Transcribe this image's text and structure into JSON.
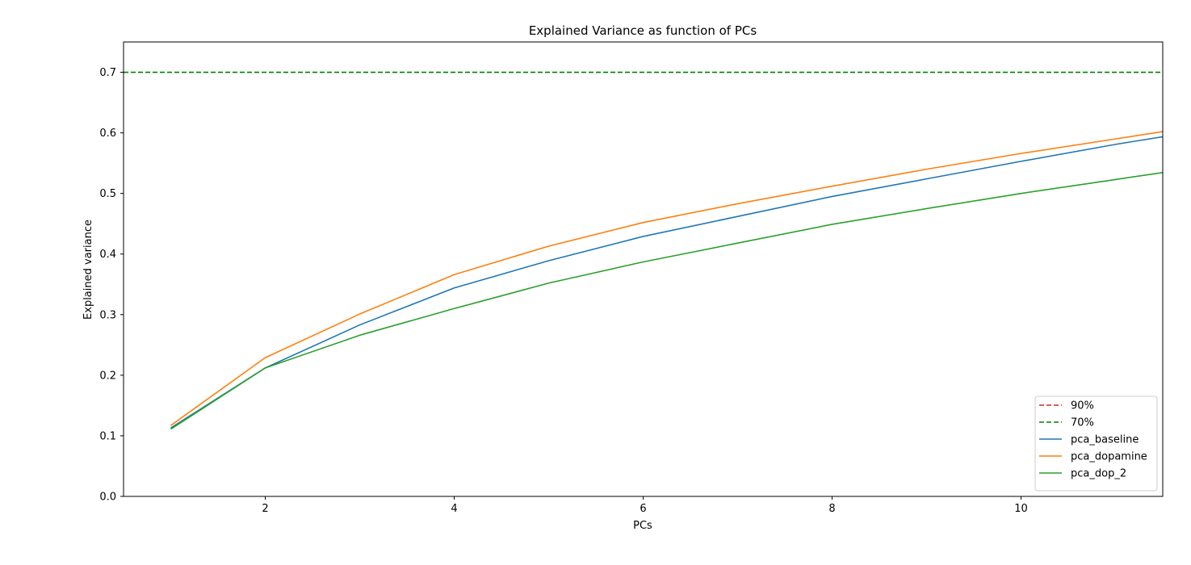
{
  "chart_data": {
    "type": "line",
    "title": "Explained Variance as function of PCs",
    "xlabel": "PCs",
    "ylabel": "Explained variance",
    "xlim": [
      0.5,
      11.5
    ],
    "ylim": [
      0.0,
      0.75
    ],
    "xticks": [
      2,
      4,
      6,
      8,
      10
    ],
    "yticks": [
      0.0,
      0.1,
      0.2,
      0.3,
      0.4,
      0.5,
      0.6,
      0.7
    ],
    "grid": false,
    "legend_position": "bottom-right",
    "x": [
      1,
      2,
      3,
      4,
      5,
      6,
      7,
      8,
      9,
      10,
      11,
      12
    ],
    "thresholds": [
      {
        "name": "90%",
        "value": 0.9,
        "color": "#d62728",
        "style": "dashed"
      },
      {
        "name": "70%",
        "value": 0.7,
        "color": "#008000",
        "style": "dashed"
      }
    ],
    "series": [
      {
        "name": "pca_baseline",
        "color": "#1f77b4",
        "values": [
          0.113,
          0.212,
          0.283,
          0.344,
          0.389,
          0.429,
          0.462,
          0.495,
          0.524,
          0.553,
          0.581,
          0.606
        ]
      },
      {
        "name": "pca_dopamine",
        "color": "#ff7f0e",
        "values": [
          0.117,
          0.229,
          0.301,
          0.366,
          0.413,
          0.452,
          0.483,
          0.512,
          0.54,
          0.566,
          0.59,
          0.614
        ]
      },
      {
        "name": "pca_dop_2",
        "color": "#2ca02c",
        "values": [
          0.111,
          0.212,
          0.266,
          0.31,
          0.352,
          0.387,
          0.418,
          0.449,
          0.475,
          0.5,
          0.523,
          0.546
        ]
      }
    ]
  }
}
